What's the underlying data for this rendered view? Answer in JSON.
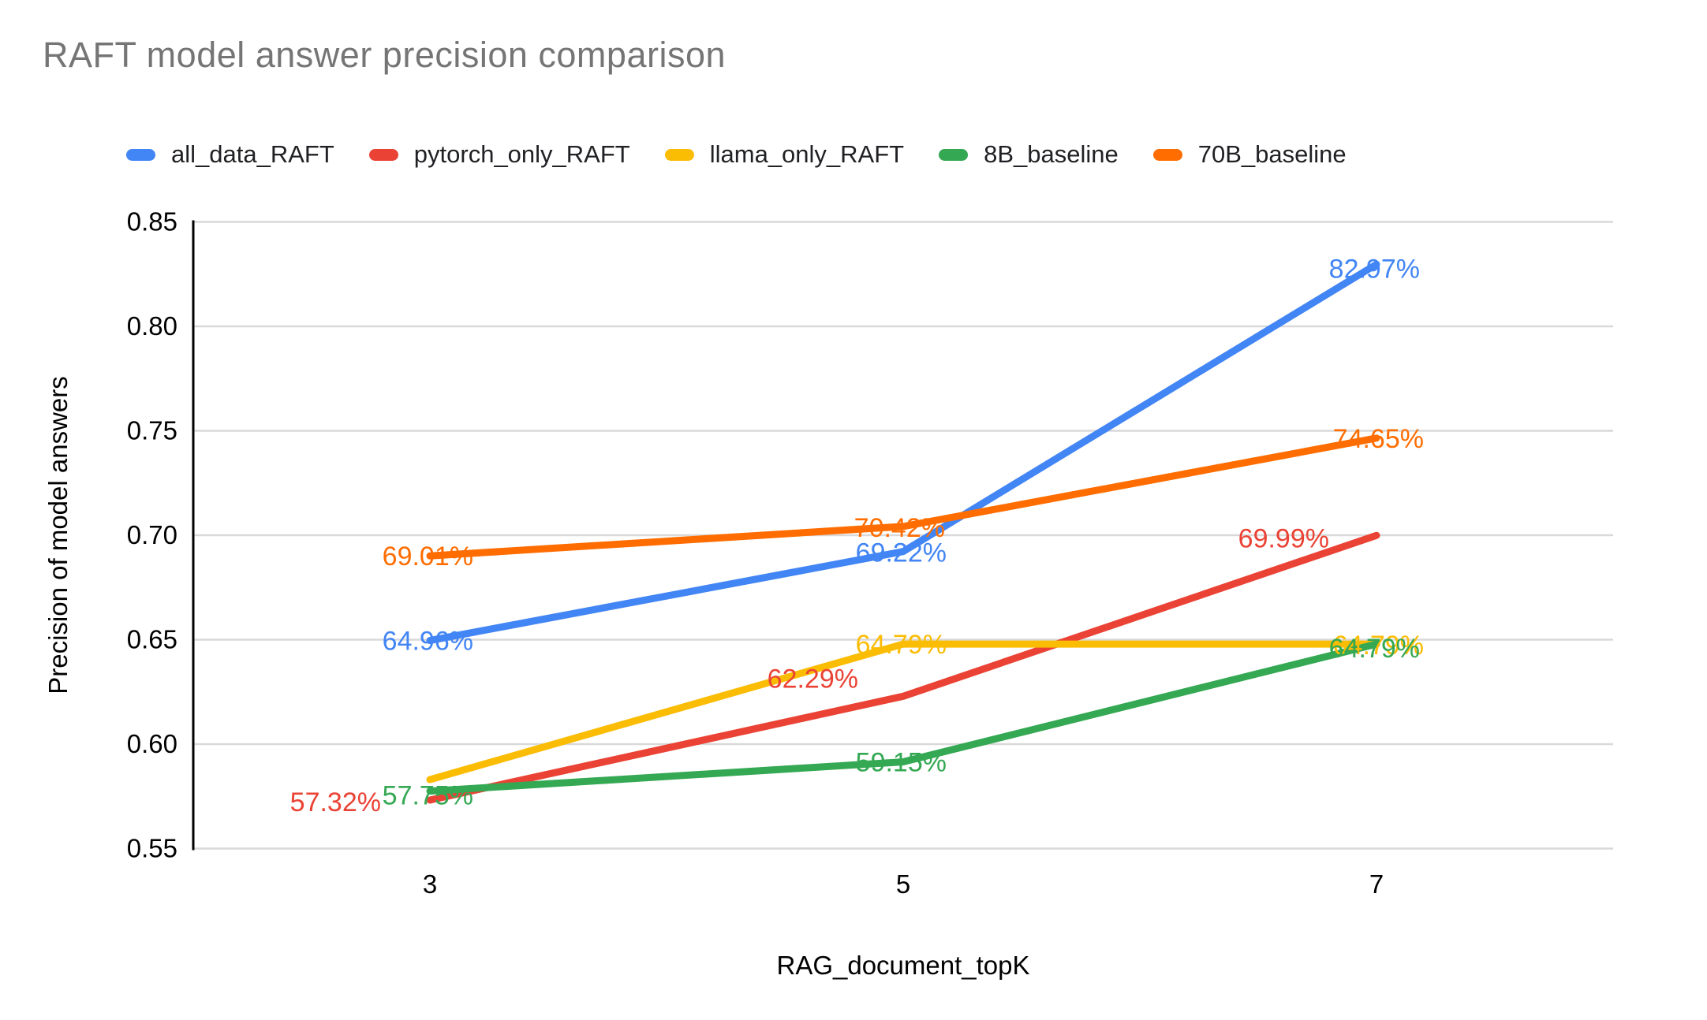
{
  "title": "RAFT model answer precision comparison",
  "legend": {
    "position": "top",
    "items": [
      {
        "label": "all_data_RAFT",
        "color": "#4285F4"
      },
      {
        "label": "pytorch_only_RAFT",
        "color": "#EA4335"
      },
      {
        "label": "llama_only_RAFT",
        "color": "#FBBC04"
      },
      {
        "label": "8B_baseline",
        "color": "#34A853"
      },
      {
        "label": "70B_baseline",
        "color": "#FF6D01"
      }
    ]
  },
  "chart_data": {
    "type": "line",
    "title": "RAFT model answer precision comparison",
    "xlabel": "RAG_document_topK",
    "ylabel": "Precision of model answers",
    "categories": [
      "3",
      "5",
      "7"
    ],
    "ylim": [
      0.55,
      0.85
    ],
    "y_ticks": [
      "0.85",
      "0.80",
      "0.75",
      "0.70",
      "0.65",
      "0.60",
      "0.55"
    ],
    "y_tick_values": [
      0.85,
      0.8,
      0.75,
      0.7,
      0.65,
      0.6,
      0.55
    ],
    "grid": true,
    "legend_position": "top",
    "grid_color": "#d9d9d9",
    "axis_color": "#000000",
    "series": [
      {
        "name": "all_data_RAFT",
        "color": "#4285F4",
        "values": [
          0.6496,
          0.6922,
          0.8297
        ],
        "labels": [
          "64.96%",
          "69.22%",
          "82.97%"
        ],
        "label_offsets": [
          {
            "dx": 55,
            "dy": 12
          },
          {
            "dx": 55,
            "dy": 13
          },
          {
            "dx": 55,
            "dy": 17
          }
        ]
      },
      {
        "name": "pytorch_only_RAFT",
        "color": "#EA4335",
        "values": [
          0.5732,
          0.6229,
          0.6999
        ],
        "labels": [
          "57.32%",
          "62.29%",
          "69.99%"
        ],
        "label_offsets": [
          {
            "dx": -62,
            "dy": 14
          },
          {
            "dx": -57,
            "dy": -11
          },
          {
            "dx": -60,
            "dy": 15
          }
        ]
      },
      {
        "name": "llama_only_RAFT",
        "color": "#FBBC04",
        "values": [
          0.583,
          0.6479,
          0.6479
        ],
        "labels": [
          null,
          "64.79%",
          "64.79%"
        ],
        "label_offsets": [
          null,
          {
            "dx": 55,
            "dy": 12
          },
          {
            "dx": 60,
            "dy": 13
          }
        ]
      },
      {
        "name": "8B_baseline",
        "color": "#34A853",
        "values": [
          0.5775,
          0.5915,
          0.6479
        ],
        "labels": [
          "57.75%",
          "59.15%",
          "64.79%"
        ],
        "label_offsets": [
          {
            "dx": 55,
            "dy": 17
          },
          {
            "dx": 55,
            "dy": 12
          },
          {
            "dx": 55,
            "dy": 17
          }
        ]
      },
      {
        "name": "70B_baseline",
        "color": "#FF6D01",
        "values": [
          0.6901,
          0.7042,
          0.7465
        ],
        "labels": [
          "69.01%",
          "70.42%",
          "74.65%"
        ],
        "label_offsets": [
          {
            "dx": 55,
            "dy": 12
          },
          {
            "dx": 53,
            "dy": 13
          },
          {
            "dx": 60,
            "dy": 12
          }
        ]
      }
    ]
  }
}
